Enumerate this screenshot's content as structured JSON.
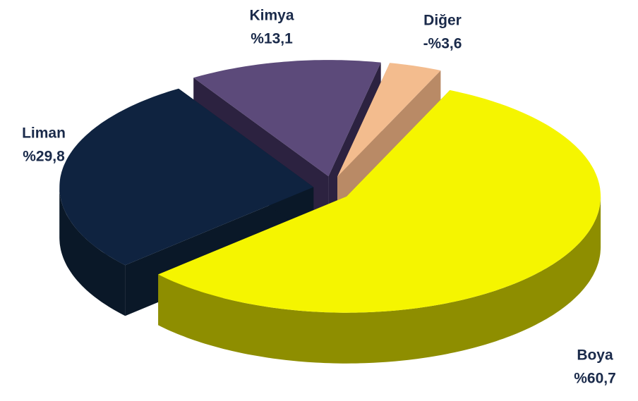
{
  "chart_data": {
    "type": "pie3d",
    "categories": [
      "Boya",
      "Liman",
      "Kimya",
      "Diğer"
    ],
    "values": [
      60.7,
      29.8,
      13.1,
      -3.6
    ],
    "value_labels": [
      "%60,7",
      "%29,8",
      "%13,1",
      "-%3,6"
    ],
    "colors": [
      "#f5f500",
      "#0f2340",
      "#5c4a7a",
      "#f3bc8e"
    ],
    "side_colors": [
      "#8e8e00",
      "#0a1828",
      "#2c2240",
      "#b98a66"
    ]
  }
}
